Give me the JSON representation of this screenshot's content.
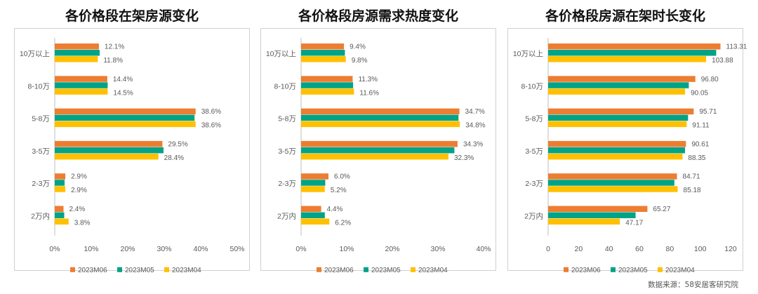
{
  "colors": {
    "m06": "#ED7D31",
    "m05": "#00A385",
    "m04": "#FFC000"
  },
  "source": "数据来源：58安居客研究院",
  "chart_data": [
    {
      "type": "bar",
      "orientation": "horizontal",
      "title": "各价格段在架房源变化",
      "categories": [
        "10万以上",
        "8-10万",
        "5-8万",
        "3-5万",
        "2-3万",
        "2万内"
      ],
      "series": [
        {
          "name": "2023M06",
          "values": [
            12.1,
            14.4,
            38.6,
            29.5,
            2.9,
            2.4
          ]
        },
        {
          "name": "2023M05",
          "values": [
            12.3,
            14.5,
            38.3,
            29.8,
            2.7,
            2.6
          ]
        },
        {
          "name": "2023M04",
          "values": [
            11.8,
            14.5,
            38.6,
            28.4,
            2.9,
            3.8
          ]
        }
      ],
      "labels_m06": [
        "12.1%",
        "14.4%",
        "38.6%",
        "29.5%",
        "2.9%",
        "2.4%"
      ],
      "labels_m04": [
        "11.8%",
        "14.5%",
        "38.6%",
        "28.4%",
        "2.9%",
        "3.8%"
      ],
      "xlim": [
        0,
        50
      ],
      "ticks": [
        0,
        10,
        20,
        30,
        40,
        50
      ],
      "tick_labels": [
        "0%",
        "10%",
        "20%",
        "30%",
        "40%",
        "50%"
      ],
      "legend": [
        "2023M06",
        "2023M05",
        "2023M04"
      ],
      "legend_position": "bottom"
    },
    {
      "type": "bar",
      "orientation": "horizontal",
      "title": "各价格段房源需求热度变化",
      "categories": [
        "10万以上",
        "8-10万",
        "5-8万",
        "3-5万",
        "2-3万",
        "2万内"
      ],
      "series": [
        {
          "name": "2023M06",
          "values": [
            9.4,
            11.3,
            34.7,
            34.3,
            6.0,
            4.4
          ]
        },
        {
          "name": "2023M05",
          "values": [
            9.6,
            11.4,
            34.5,
            33.6,
            5.3,
            5.2
          ]
        },
        {
          "name": "2023M04",
          "values": [
            9.8,
            11.6,
            34.8,
            32.3,
            5.2,
            6.2
          ]
        }
      ],
      "labels_m06": [
        "9.4%",
        "11.3%",
        "34.7%",
        "34.3%",
        "6.0%",
        "4.4%"
      ],
      "labels_m04": [
        "9.8%",
        "11.6%",
        "34.8%",
        "32.3%",
        "5.2%",
        "6.2%"
      ],
      "xlim": [
        0,
        40
      ],
      "ticks": [
        0,
        10,
        20,
        30,
        40
      ],
      "tick_labels": [
        "0%",
        "10%",
        "20%",
        "30%",
        "40%"
      ],
      "legend": [
        "2023M06",
        "2023M05",
        "2023M04"
      ],
      "legend_position": "bottom"
    },
    {
      "type": "bar",
      "orientation": "horizontal",
      "title": "各价格段房源在架时长变化",
      "categories": [
        "10万以上",
        "8-10万",
        "5-8万",
        "3-5万",
        "2-3万",
        "2万内"
      ],
      "series": [
        {
          "name": "2023M06",
          "values": [
            113.31,
            96.8,
            95.71,
            90.61,
            84.71,
            65.27
          ]
        },
        {
          "name": "2023M05",
          "values": [
            110.5,
            92.5,
            92.0,
            90.0,
            83.0,
            57.5
          ]
        },
        {
          "name": "2023M04",
          "values": [
            103.88,
            90.05,
            91.11,
            88.35,
            85.18,
            47.17
          ]
        }
      ],
      "labels_m06": [
        "113.31",
        "96.80",
        "95.71",
        "90.61",
        "84.71",
        "65.27"
      ],
      "labels_m04": [
        "103.88",
        "90.05",
        "91.11",
        "88.35",
        "85.18",
        "47.17"
      ],
      "xlim": [
        0,
        120
      ],
      "ticks": [
        0,
        20,
        40,
        60,
        80,
        100,
        120
      ],
      "tick_labels": [
        "0",
        "20",
        "40",
        "60",
        "80",
        "100",
        "120"
      ],
      "legend": [
        "2023M06",
        "2023M05",
        "2023M04"
      ],
      "legend_position": "bottom"
    }
  ]
}
